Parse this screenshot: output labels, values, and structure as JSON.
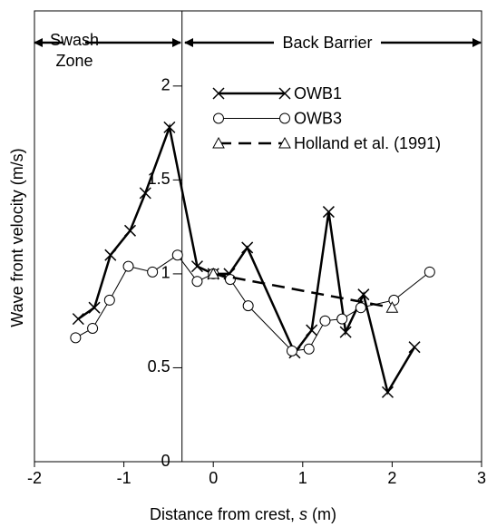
{
  "chart_data": {
    "type": "line",
    "xlabel": [
      "Distance from crest, ",
      "s",
      " (m)"
    ],
    "ylabel": "Wave front velocity (m/s)",
    "annotations": [
      "Swash",
      "Zone",
      "Back Barrier"
    ],
    "divider_x": -0.35,
    "xlim": [
      -2,
      3
    ],
    "xticks": [
      -2,
      -1,
      0,
      1,
      2,
      3
    ],
    "ylim": [
      0,
      2.4
    ],
    "yticks": [
      0,
      0.5,
      1,
      1.5,
      2
    ],
    "grid": false,
    "series": [
      {
        "name": "OWB1",
        "color": "#000000",
        "marker": "x",
        "linestyle": "solid",
        "linewidth": 2.5,
        "x": [
          -1.51,
          -1.33,
          -1.15,
          -0.93,
          -0.76,
          -0.49,
          -0.18,
          0,
          0.18,
          0.38,
          0.91,
          1.1,
          1.29,
          1.48,
          1.68,
          1.95,
          2.25
        ],
        "values": [
          0.76,
          0.82,
          1.1,
          1.23,
          1.43,
          1.78,
          1.04,
          1.0,
          1.0,
          1.14,
          0.58,
          0.7,
          1.33,
          0.69,
          0.89,
          0.37,
          0.61
        ]
      },
      {
        "name": "OWB3",
        "color": "#000000",
        "marker": "circle",
        "linestyle": "solid",
        "linewidth": 1,
        "x": [
          -1.54,
          -1.35,
          -1.16,
          -0.95,
          -0.68,
          -0.4,
          -0.18,
          0,
          0.19,
          0.39,
          0.88,
          1.07,
          1.25,
          1.44,
          1.65,
          2.02,
          2.42
        ],
        "values": [
          0.66,
          0.71,
          0.86,
          1.04,
          1.01,
          1.1,
          0.96,
          1.0,
          0.97,
          0.83,
          0.59,
          0.6,
          0.75,
          0.76,
          0.82,
          0.86,
          1.01
        ]
      },
      {
        "name": "Holland et al. (1991)",
        "color": "#000000",
        "marker": "triangle",
        "linestyle": "dashed",
        "linewidth": 2.5,
        "x": [
          0,
          2.0
        ],
        "values": [
          1.0,
          0.82
        ]
      }
    ]
  }
}
